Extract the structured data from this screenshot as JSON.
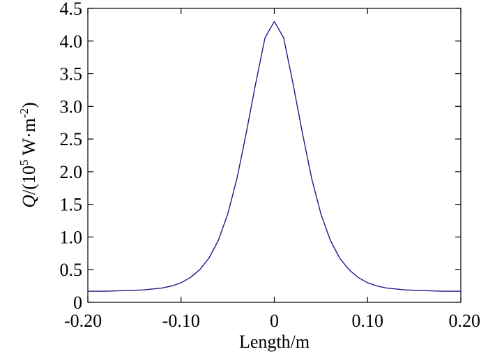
{
  "chart_data": {
    "type": "line",
    "title": "",
    "xlabel": "Length/m",
    "ylabel": {
      "prefix": "/(10",
      "symbol": "Q",
      "exp": "5",
      "mid": " W·m",
      "exp2": "-2",
      "suffix": ")"
    },
    "xlim": [
      -0.2,
      0.2
    ],
    "ylim": [
      0,
      4.5
    ],
    "x_ticks": [
      -0.2,
      -0.1,
      0,
      0.1,
      0.2
    ],
    "x_tick_labels": [
      "-0.20",
      "-0.10",
      "0",
      "0.10",
      "0.20"
    ],
    "y_ticks": [
      0,
      0.5,
      1.0,
      1.5,
      2.0,
      2.5,
      3.0,
      3.5,
      4.0,
      4.5
    ],
    "y_tick_labels": [
      "0",
      "0.5",
      "1.0",
      "1.5",
      "2.0",
      "2.5",
      "3.0",
      "3.5",
      "4.0",
      "4.5"
    ],
    "grid": false,
    "series": [
      {
        "color": "#1c1a8a",
        "x": [
          -0.2,
          -0.18,
          -0.16,
          -0.14,
          -0.12,
          -0.11,
          -0.1,
          -0.09,
          -0.08,
          -0.07,
          -0.06,
          -0.05,
          -0.04,
          -0.03,
          -0.02,
          -0.01,
          0,
          0.01,
          0.02,
          0.03,
          0.04,
          0.05,
          0.06,
          0.07,
          0.08,
          0.09,
          0.1,
          0.11,
          0.12,
          0.14,
          0.16,
          0.18,
          0.2
        ],
        "y": [
          0.17,
          0.17,
          0.18,
          0.19,
          0.22,
          0.25,
          0.3,
          0.38,
          0.5,
          0.68,
          0.95,
          1.35,
          1.9,
          2.6,
          3.35,
          4.05,
          4.3,
          4.05,
          3.35,
          2.6,
          1.9,
          1.35,
          0.95,
          0.68,
          0.5,
          0.38,
          0.3,
          0.25,
          0.22,
          0.19,
          0.18,
          0.17,
          0.17
        ]
      }
    ]
  }
}
